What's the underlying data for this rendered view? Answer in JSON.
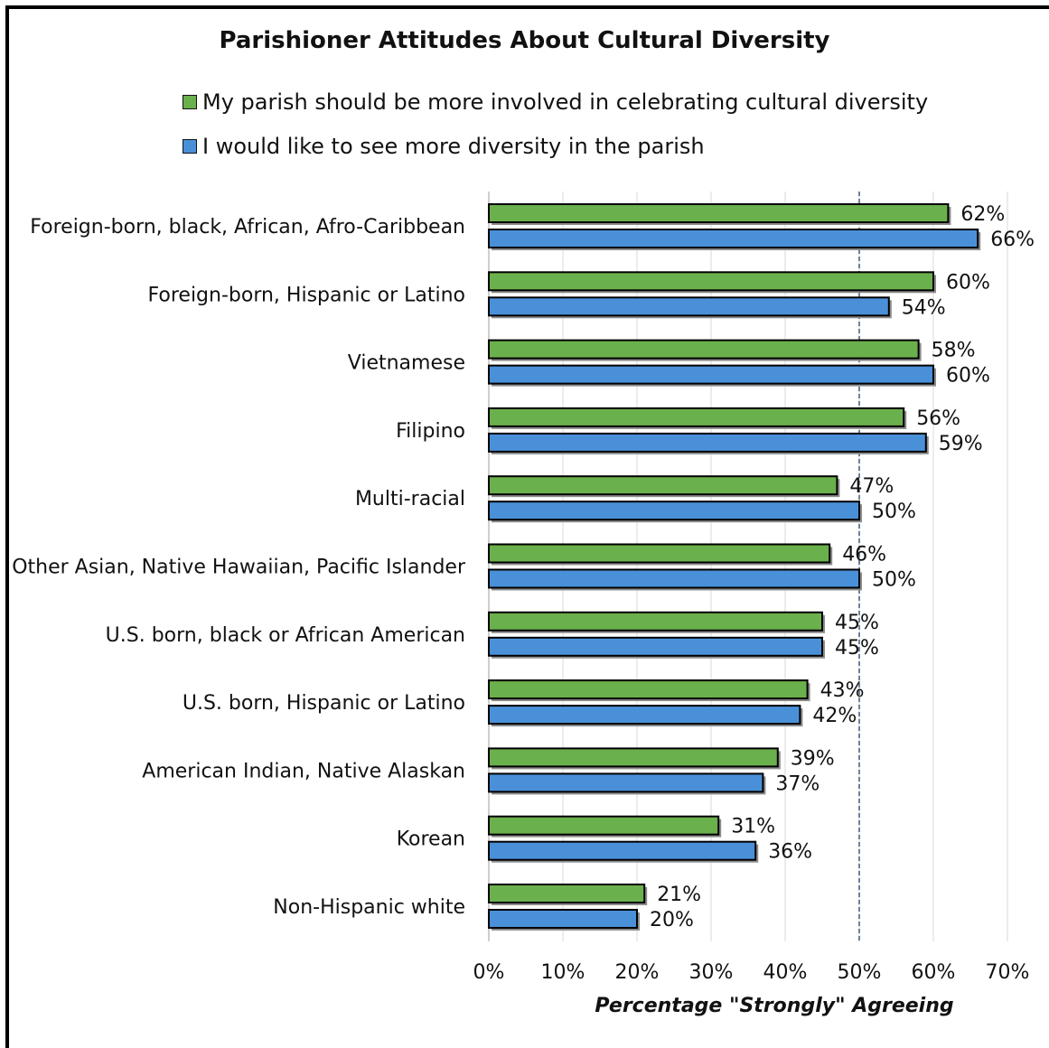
{
  "chart_data": {
    "type": "bar",
    "orientation": "horizontal",
    "title": "Parishioner Attitudes About Cultural Diversity",
    "xlabel": "Percentage \"Strongly\" Agreeing",
    "xlim": [
      0,
      70
    ],
    "xticks": [
      "0%",
      "10%",
      "20%",
      "30%",
      "40%",
      "50%",
      "60%",
      "70%"
    ],
    "reference_line": 50,
    "grid": true,
    "legend_position": "top",
    "categories": [
      "Foreign-born, black, African, Afro-Caribbean",
      "Foreign-born, Hispanic or Latino",
      "Vietnamese",
      "Filipino",
      "Multi-racial",
      "Other Asian, Native Hawaiian, Pacific Islander",
      "U.S. born, black or African American",
      "U.S. born, Hispanic or Latino",
      "American Indian, Native Alaskan",
      "Korean",
      "Non-Hispanic white"
    ],
    "series": [
      {
        "name": "My parish should be more involved in celebrating cultural diversity",
        "color": "#6ab04c",
        "values": [
          62,
          60,
          58,
          56,
          47,
          46,
          45,
          43,
          39,
          31,
          21
        ],
        "labels": [
          "62%",
          "60%",
          "58%",
          "56%",
          "47%",
          "46%",
          "45%",
          "43%",
          "39%",
          "31%",
          "21%"
        ]
      },
      {
        "name": "I would like to see more diversity in the parish",
        "color": "#4a90d9",
        "values": [
          66,
          54,
          60,
          59,
          50,
          50,
          45,
          42,
          37,
          36,
          20
        ],
        "labels": [
          "66%",
          "54%",
          "60%",
          "59%",
          "50%",
          "50%",
          "45%",
          "42%",
          "37%",
          "36%",
          "20%"
        ]
      }
    ]
  }
}
